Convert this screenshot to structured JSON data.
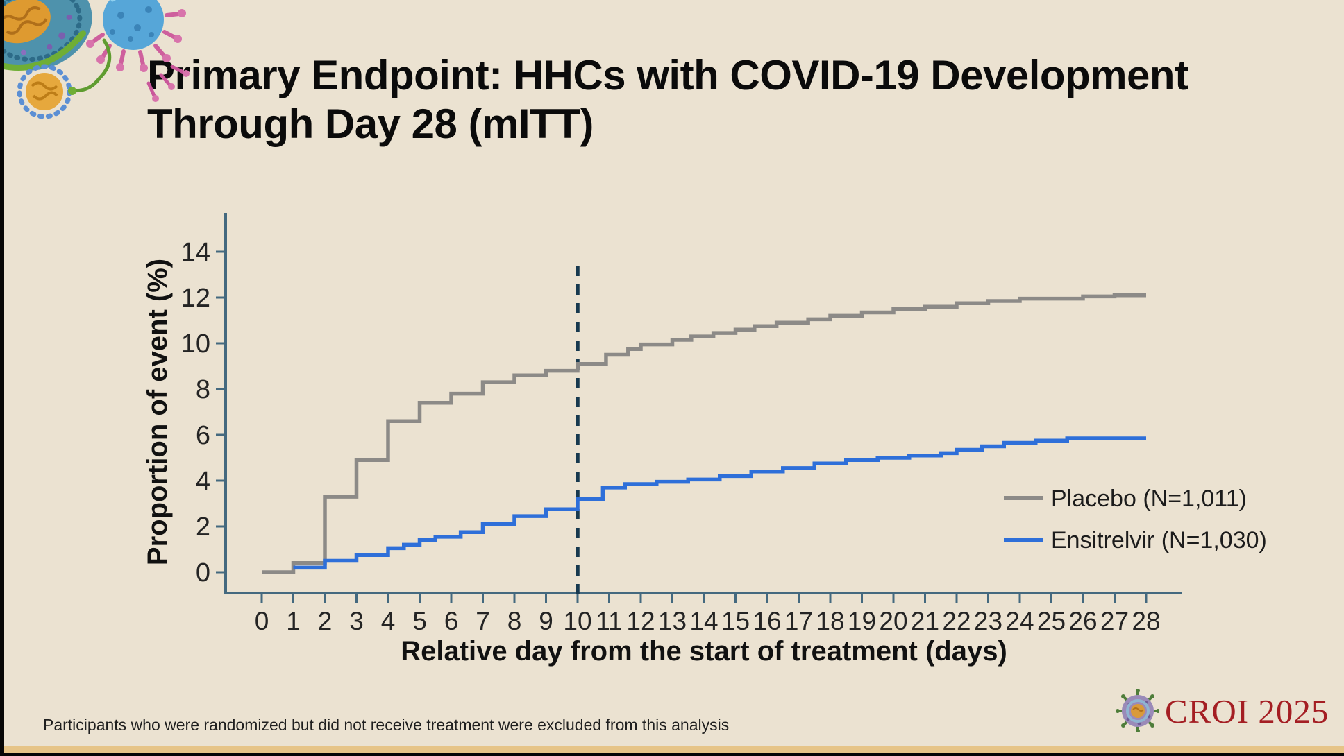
{
  "slide": {
    "title_lines": [
      "Primary Endpoint: HHCs with COVID-19 Development",
      "Through Day 28 (mITT)"
    ],
    "footnote": "Participants who were randomized but did not receive treatment were excluded from this analysis",
    "logo_text": "CROI 2025"
  },
  "colors": {
    "background": "#ebe2d1",
    "title": "#0b0b0b",
    "axis": "#44697f",
    "tick_label": "#242424",
    "axis_title": "#111111",
    "reference_line": "#17394f",
    "placebo": "#8c8a87",
    "ensitrelvir": "#2e6fd9",
    "legend_text": "#1c1c1c",
    "logo_red": "#a41e23",
    "gold_strip": "#e6c487"
  },
  "chart_data": {
    "type": "line",
    "style": "kaplan-meier-step",
    "title": "",
    "xlabel": "Relative day from the start of treatment (days)",
    "ylabel": "Proportion of event (%)",
    "xlim": [
      0,
      28
    ],
    "ylim": [
      0,
      14
    ],
    "xticks": [
      0,
      1,
      2,
      3,
      4,
      5,
      6,
      7,
      8,
      9,
      10,
      11,
      12,
      13,
      14,
      15,
      16,
      17,
      18,
      19,
      20,
      21,
      22,
      23,
      24,
      25,
      26,
      27,
      28
    ],
    "yticks": [
      0,
      2,
      4,
      6,
      8,
      10,
      12,
      14
    ],
    "grid": false,
    "legend_position": "inside-right",
    "reference_line": {
      "axis": "x",
      "value": 10,
      "style": "dashed"
    },
    "series": [
      {
        "name": "Placebo (N=1,011)",
        "color": "#8c8a87",
        "steps": [
          [
            0,
            0
          ],
          [
            1,
            0.4
          ],
          [
            2,
            3.3
          ],
          [
            3,
            4.9
          ],
          [
            4,
            6.6
          ],
          [
            5,
            7.4
          ],
          [
            6,
            7.8
          ],
          [
            7,
            8.3
          ],
          [
            8,
            8.6
          ],
          [
            9,
            8.8
          ],
          [
            10,
            9.1
          ],
          [
            10.9,
            9.5
          ],
          [
            11.6,
            9.75
          ],
          [
            12,
            9.95
          ],
          [
            13,
            10.15
          ],
          [
            13.6,
            10.3
          ],
          [
            14.3,
            10.45
          ],
          [
            15,
            10.6
          ],
          [
            15.6,
            10.75
          ],
          [
            16.3,
            10.9
          ],
          [
            17.3,
            11.05
          ],
          [
            18,
            11.2
          ],
          [
            19,
            11.35
          ],
          [
            20,
            11.5
          ],
          [
            21,
            11.6
          ],
          [
            22,
            11.75
          ],
          [
            23,
            11.85
          ],
          [
            24,
            11.95
          ],
          [
            26,
            12.05
          ],
          [
            27,
            12.1
          ],
          [
            28,
            12.1
          ]
        ]
      },
      {
        "name": "Ensitrelvir (N=1,030)",
        "color": "#2e6fd9",
        "steps": [
          [
            1,
            0.2
          ],
          [
            2,
            0.5
          ],
          [
            3,
            0.75
          ],
          [
            4,
            1.05
          ],
          [
            4.5,
            1.2
          ],
          [
            5,
            1.4
          ],
          [
            5.5,
            1.55
          ],
          [
            6.3,
            1.75
          ],
          [
            7,
            2.1
          ],
          [
            8,
            2.45
          ],
          [
            9,
            2.75
          ],
          [
            10,
            3.2
          ],
          [
            10.8,
            3.7
          ],
          [
            11.5,
            3.85
          ],
          [
            12.5,
            3.95
          ],
          [
            13.5,
            4.05
          ],
          [
            14.5,
            4.2
          ],
          [
            15.5,
            4.4
          ],
          [
            16.5,
            4.55
          ],
          [
            17.5,
            4.75
          ],
          [
            18.5,
            4.9
          ],
          [
            19.5,
            5.0
          ],
          [
            20.5,
            5.1
          ],
          [
            21.5,
            5.2
          ],
          [
            22,
            5.35
          ],
          [
            22.8,
            5.5
          ],
          [
            23.5,
            5.65
          ],
          [
            24.5,
            5.75
          ],
          [
            25.5,
            5.85
          ],
          [
            28,
            5.85
          ]
        ]
      }
    ]
  }
}
